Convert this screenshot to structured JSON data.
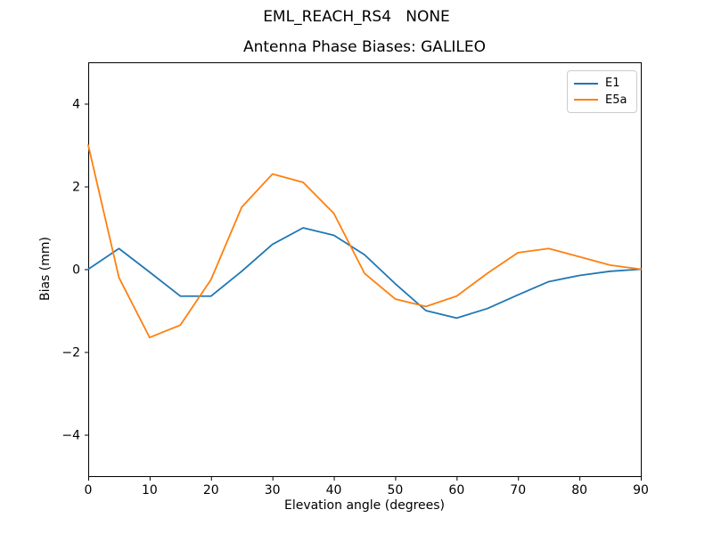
{
  "figure": {
    "suptitle": "EML_REACH_RS4   NONE",
    "background": "#ffffff"
  },
  "chart_data": {
    "type": "line",
    "suptitle": "EML_REACH_RS4   NONE",
    "title": "Antenna Phase Biases: GALILEO",
    "xlabel": "Elevation angle (degrees)",
    "ylabel": "Bias (mm)",
    "x": [
      0,
      5,
      10,
      15,
      20,
      25,
      30,
      35,
      40,
      45,
      50,
      55,
      60,
      65,
      70,
      75,
      80,
      85,
      90
    ],
    "series": [
      {
        "name": "E1",
        "color": "#1f77b4",
        "values": [
          0.0,
          0.5,
          -0.07,
          -0.65,
          -0.65,
          -0.05,
          0.6,
          1.0,
          0.82,
          0.35,
          -0.35,
          -1.0,
          -1.18,
          -0.95,
          -0.62,
          -0.3,
          -0.15,
          -0.05,
          0.0
        ]
      },
      {
        "name": "E5a",
        "color": "#ff7f0e",
        "values": [
          3.0,
          -0.2,
          -1.65,
          -1.35,
          -0.25,
          1.5,
          2.3,
          2.1,
          1.35,
          -0.1,
          -0.72,
          -0.9,
          -0.65,
          -0.1,
          0.4,
          0.5,
          0.3,
          0.1,
          0.0
        ]
      }
    ],
    "xlim": [
      0,
      90
    ],
    "ylim": [
      -5,
      5
    ],
    "xticks": [
      0,
      10,
      20,
      30,
      40,
      50,
      60,
      70,
      80,
      90
    ],
    "yticks": [
      -4,
      -2,
      0,
      2,
      4
    ],
    "ytick_labels": [
      "−4",
      "−2",
      "0",
      "2",
      "4"
    ],
    "grid": false,
    "legend_position": "upper right",
    "axis_color": "#000000"
  }
}
